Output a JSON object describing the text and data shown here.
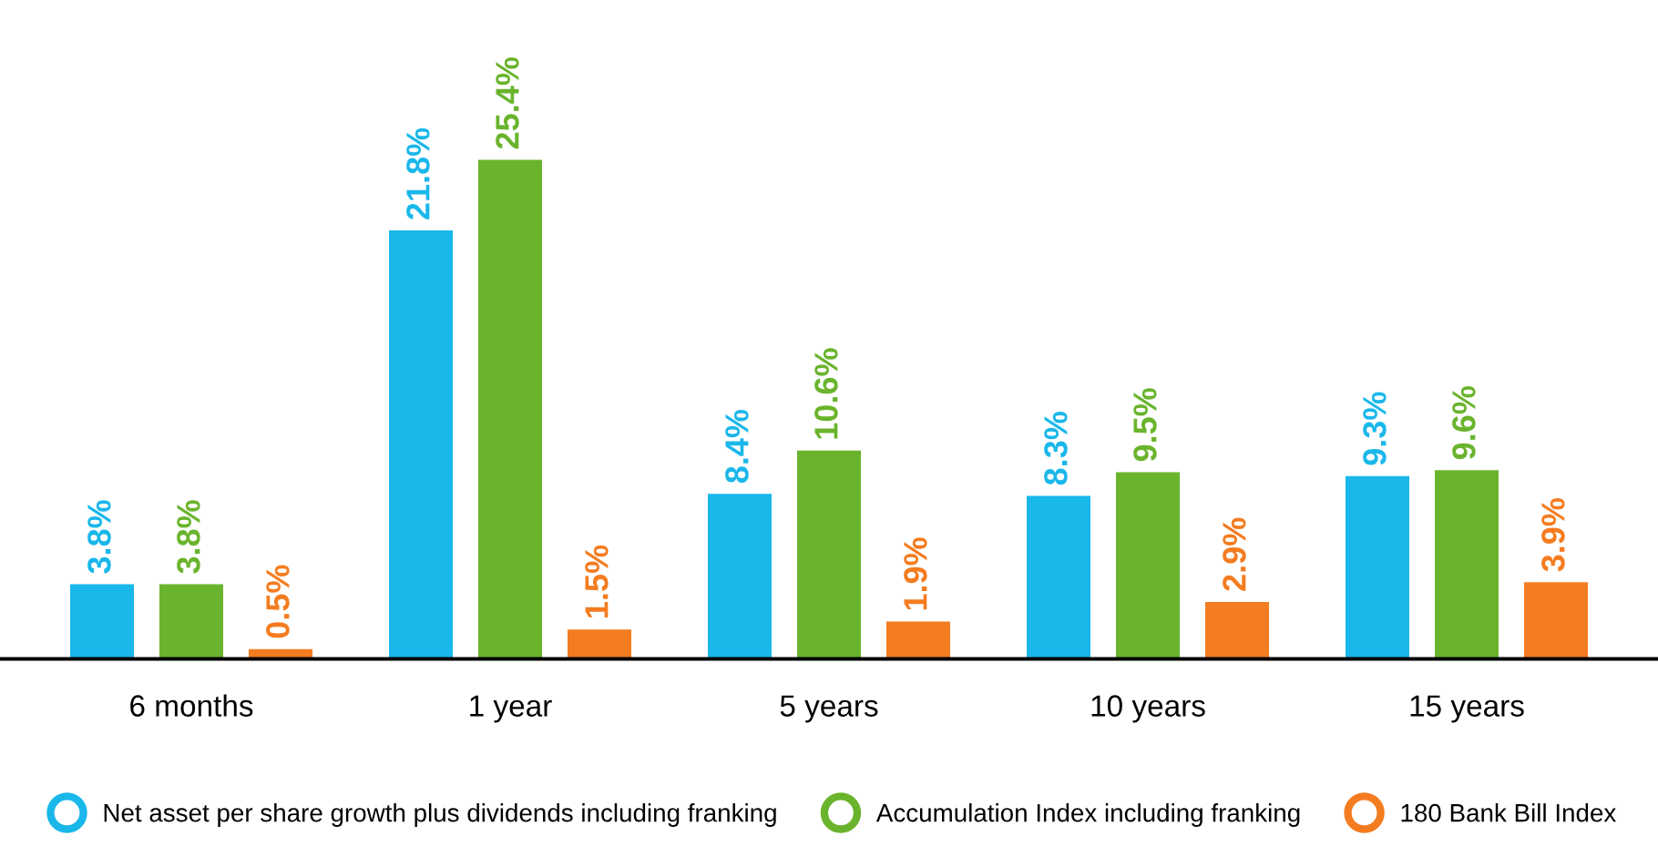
{
  "chart_data": {
    "type": "bar",
    "categories": [
      "6 months",
      "1 year",
      "5 years",
      "10 years",
      "15 years"
    ],
    "series": [
      {
        "name": "Net asset per share growth plus dividends including franking",
        "color": "#1ab7ea",
        "values": [
          3.8,
          21.8,
          8.4,
          8.3,
          9.3
        ],
        "value_labels": [
          "3.8%",
          "21.8%",
          "8.4%",
          "8.3%",
          "9.3%"
        ]
      },
      {
        "name": "Accumulation Index including franking",
        "color": "#6ab42d",
        "values": [
          3.8,
          25.4,
          10.6,
          9.5,
          9.6
        ],
        "value_labels": [
          "3.8%",
          "25.4%",
          "10.6%",
          "9.5%",
          "9.6%"
        ]
      },
      {
        "name": "180 Bank Bill Index",
        "color": "#f47c20",
        "values": [
          0.5,
          1.5,
          1.9,
          2.9,
          3.9
        ],
        "value_labels": [
          "0.5%",
          "1.5%",
          "1.9%",
          "2.9%",
          "3.9%"
        ]
      }
    ],
    "legend": "bottom"
  }
}
